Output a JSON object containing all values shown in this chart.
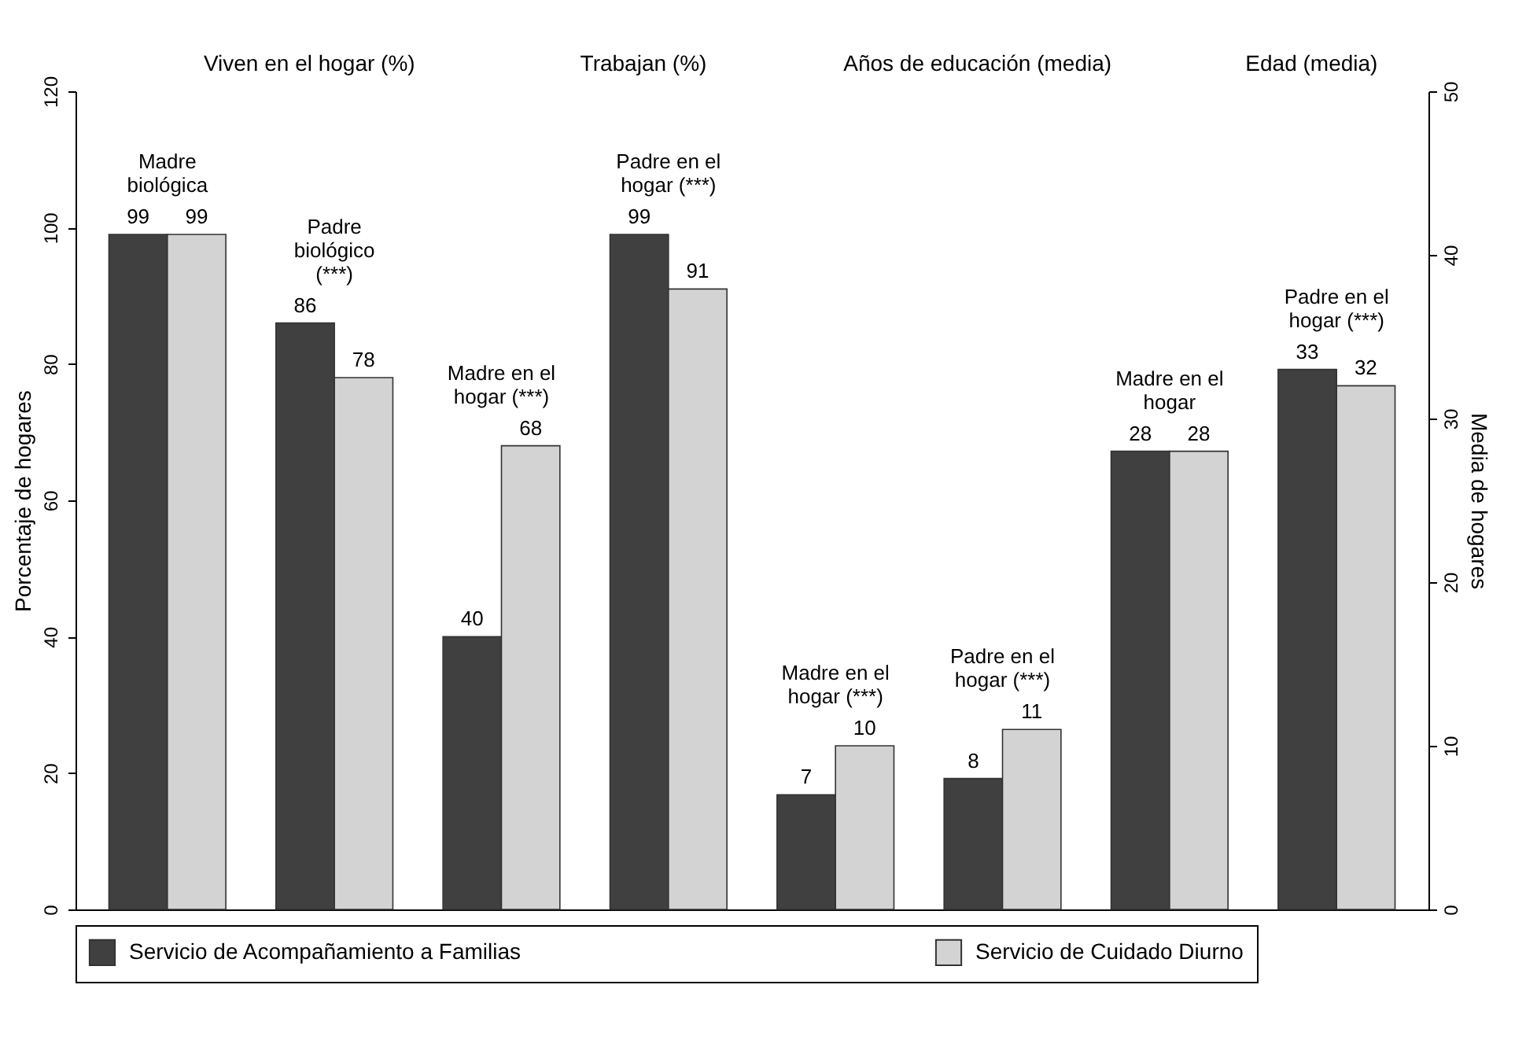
{
  "chart_data": {
    "type": "bar",
    "ylabel": "Porcentaje de hogares",
    "y2label": "Media de hogares",
    "categories": [
      "Madre biológica",
      "Padre biológico (***)",
      "Madre en el hogar (***)",
      "Padre en el hogar (***)",
      "Madre en el hogar (***)",
      "Padre en el hogar (***)",
      "Madre en el hogar",
      "Padre en el hogar (***)"
    ],
    "series": [
      {
        "name": "Servicio de Acompañamiento a Familias",
        "color": "#404040",
        "values": [
          99,
          86,
          40,
          99,
          null,
          null,
          null,
          null
        ]
      },
      {
        "name": "Servicio de Cuidado Diurno",
        "color": "#d3d3d3",
        "values": [
          99,
          78,
          68,
          91,
          null,
          null,
          null,
          null
        ]
      },
      {
        "color": "#404040",
        "axis": "y2",
        "values": [
          null,
          null,
          null,
          null,
          7,
          8,
          28,
          33
        ]
      },
      {
        "color": "#d3d3d3",
        "axis": "y2",
        "values": [
          null,
          null,
          null,
          null,
          10,
          11,
          28,
          32
        ]
      }
    ],
    "ylim": [
      0,
      120
    ],
    "yticks": [
      0,
      20,
      40,
      60,
      80,
      100,
      120
    ],
    "y2lim": [
      0,
      50
    ],
    "y2ticks": [
      0,
      10,
      20,
      30,
      40,
      50
    ],
    "annotations": [
      "Viven en el hogar (%)",
      "Trabajan (%)",
      "Años de educación (media)",
      "Edad (media)"
    ],
    "data_labels": true,
    "legend": "bottom"
  }
}
